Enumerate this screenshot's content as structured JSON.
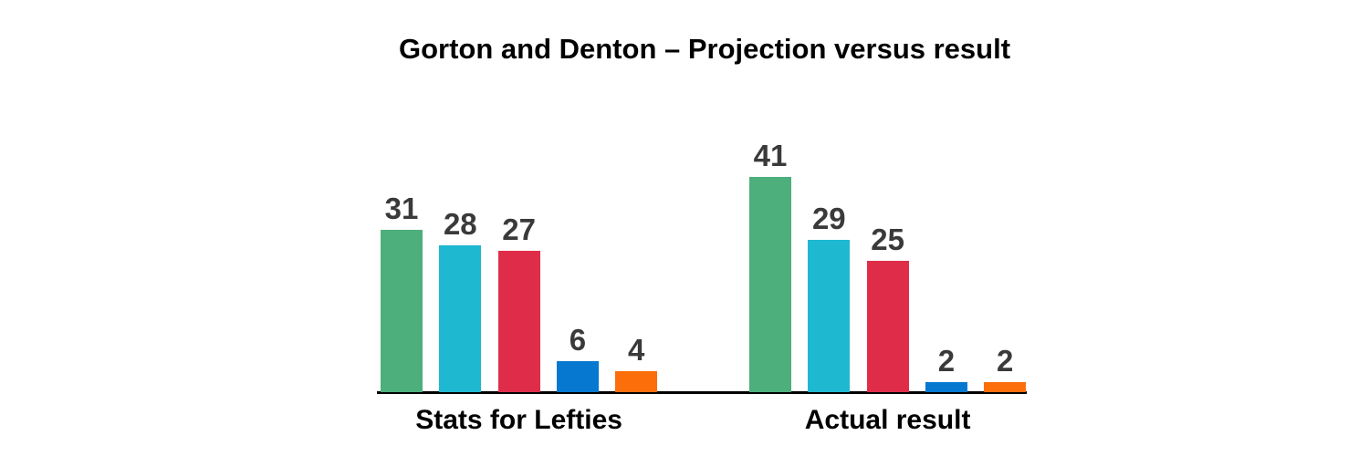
{
  "title": "Gorton and Denton – Projection versus result",
  "chart_data": {
    "type": "bar",
    "title": "Gorton and Denton – Projection versus result",
    "categories": [
      "Stats for Lefties",
      "Actual result"
    ],
    "series": [
      {
        "name": "green-series",
        "color": "#4DAF7C",
        "values": [
          31,
          41
        ]
      },
      {
        "name": "cyan-series",
        "color": "#1FB8D1",
        "values": [
          28,
          29
        ]
      },
      {
        "name": "red-series",
        "color": "#DF2D49",
        "values": [
          27,
          25
        ]
      },
      {
        "name": "blue-series",
        "color": "#0678D0",
        "values": [
          6,
          2
        ]
      },
      {
        "name": "orange-series",
        "color": "#FB6E0A",
        "values": [
          4,
          2
        ]
      }
    ],
    "value_labels_shown": true,
    "value_label_color": "#3A3A3A",
    "axis_line_color": "#000000",
    "xlabel": "",
    "ylabel": "",
    "ylim": [
      0,
      41
    ],
    "grid": false,
    "legend": false
  }
}
